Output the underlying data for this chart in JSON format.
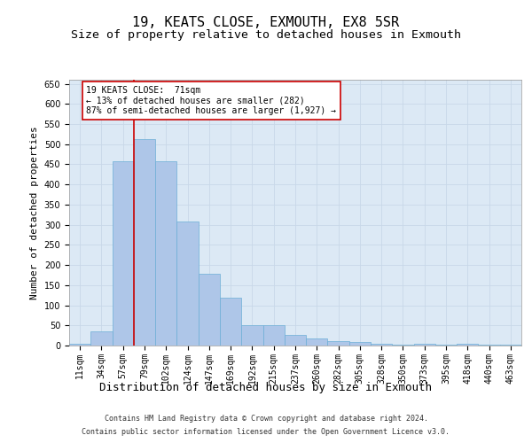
{
  "title1": "19, KEATS CLOSE, EXMOUTH, EX8 5SR",
  "title2": "Size of property relative to detached houses in Exmouth",
  "xlabel": "Distribution of detached houses by size in Exmouth",
  "ylabel": "Number of detached properties",
  "categories": [
    "11sqm",
    "34sqm",
    "57sqm",
    "79sqm",
    "102sqm",
    "124sqm",
    "147sqm",
    "169sqm",
    "192sqm",
    "215sqm",
    "237sqm",
    "260sqm",
    "282sqm",
    "305sqm",
    "328sqm",
    "350sqm",
    "373sqm",
    "395sqm",
    "418sqm",
    "440sqm",
    "463sqm"
  ],
  "values": [
    5,
    35,
    457,
    512,
    457,
    307,
    178,
    118,
    50,
    50,
    27,
    18,
    12,
    8,
    5,
    3,
    5,
    2,
    5,
    2,
    3
  ],
  "bar_color": "#aec6e8",
  "bar_edge_color": "#6baed6",
  "vline_color": "#cc0000",
  "annotation_text": "19 KEATS CLOSE:  71sqm\n← 13% of detached houses are smaller (282)\n87% of semi-detached houses are larger (1,927) →",
  "annotation_box_color": "#ffffff",
  "annotation_box_edge": "#cc0000",
  "ylim": [
    0,
    660
  ],
  "yticks": [
    0,
    50,
    100,
    150,
    200,
    250,
    300,
    350,
    400,
    450,
    500,
    550,
    600,
    650
  ],
  "grid_color": "#c8d8e8",
  "bg_color": "#dce9f5",
  "footer1": "Contains HM Land Registry data © Crown copyright and database right 2024.",
  "footer2": "Contains public sector information licensed under the Open Government Licence v3.0.",
  "title1_fontsize": 11,
  "title2_fontsize": 9.5,
  "tick_fontsize": 7,
  "ylabel_fontsize": 8,
  "xlabel_fontsize": 9,
  "annot_fontsize": 7,
  "footer_fontsize": 6
}
